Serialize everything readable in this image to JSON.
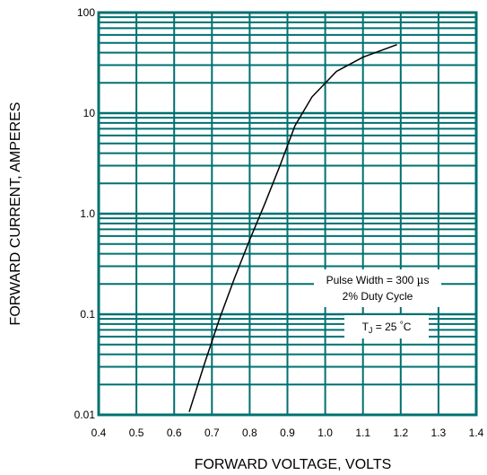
{
  "chart_data": {
    "type": "line",
    "xlabel": "FORWARD VOLTAGE, VOLTS",
    "ylabel": "FORWARD CURRENT, AMPERES",
    "xlim": [
      0.4,
      1.4
    ],
    "ylim": [
      0.01,
      100
    ],
    "y_scale": "log",
    "grid": true,
    "grid_color": "#007070",
    "line_color": "#000000",
    "x_ticks": [
      "0.4",
      "0.5",
      "0.6",
      "0.7",
      "0.8",
      "0.9",
      "1.0",
      "1.1",
      "1.2",
      "1.3",
      "1.4"
    ],
    "y_ticks": [
      {
        "value": 0.01,
        "label": "0.01"
      },
      {
        "value": 0.1,
        "label": "0.1"
      },
      {
        "value": 1,
        "label": "1.0"
      },
      {
        "value": 10,
        "label": "10"
      },
      {
        "value": 100,
        "label": "100"
      }
    ],
    "series": [
      {
        "x": [
          0.64,
          0.68,
          0.72,
          0.76,
          0.8,
          0.84,
          0.88,
          0.92,
          0.965,
          1.03,
          1.1,
          1.19
        ],
        "y": [
          0.0107,
          0.032,
          0.09,
          0.23,
          0.55,
          1.25,
          3.0,
          7.5,
          14.5,
          26,
          36,
          48
        ]
      }
    ],
    "annotations": {
      "pulse_width_prefix": "Pulse Width = 300 ",
      "pulse_width_mu": "µ",
      "pulse_width_unit": "s",
      "duty_cycle": "2% Duty Cycle",
      "tj_t": "T",
      "tj_sub": "J",
      "tj_eq": " = 25 ",
      "tj_deg": "°",
      "tj_unit": "C"
    }
  }
}
